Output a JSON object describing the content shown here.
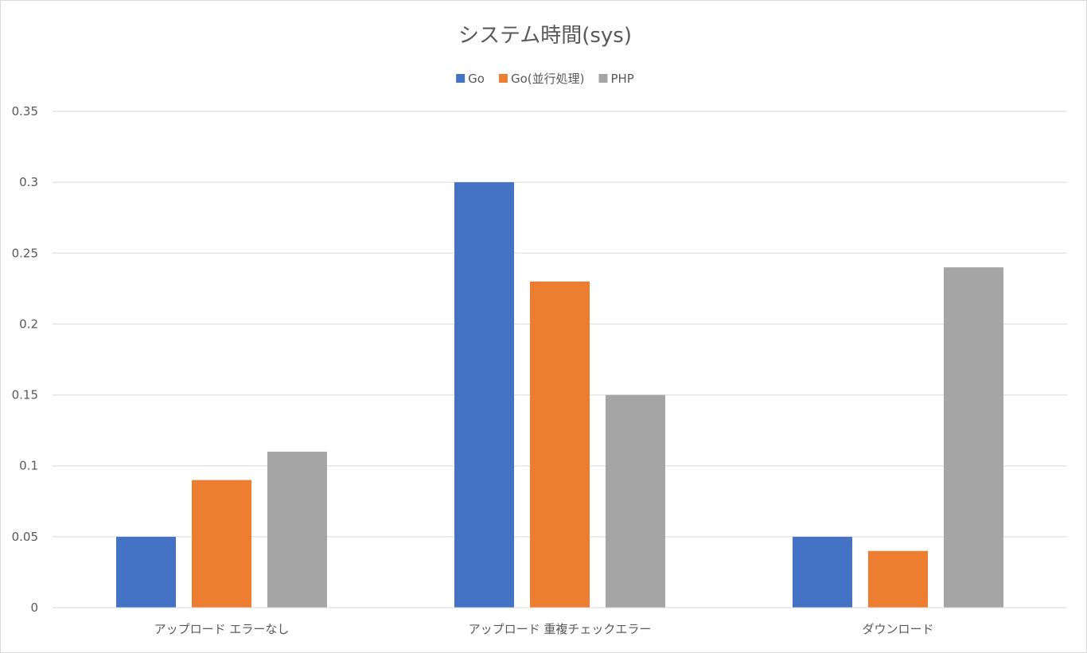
{
  "chart_data": {
    "type": "bar",
    "title": "システム時間(sys)",
    "categories": [
      "アップロード エラーなし",
      "アップロード 重複チェックエラー",
      "ダウンロード"
    ],
    "series": [
      {
        "name": "Go",
        "values": [
          0.05,
          0.3,
          0.05
        ],
        "color": "#4472C4"
      },
      {
        "name": "Go(並行処理)",
        "values": [
          0.09,
          0.23,
          0.04
        ],
        "color": "#ED7D31"
      },
      {
        "name": "PHP",
        "values": [
          0.11,
          0.15,
          0.24
        ],
        "color": "#A5A5A5"
      }
    ],
    "ylim": [
      0,
      0.35
    ],
    "yticks": [
      "0",
      "0.05",
      "0.1",
      "0.15",
      "0.2",
      "0.25",
      "0.3",
      "0.35"
    ],
    "xlabel": "",
    "ylabel": "",
    "grid": true,
    "legend_position": "top"
  }
}
